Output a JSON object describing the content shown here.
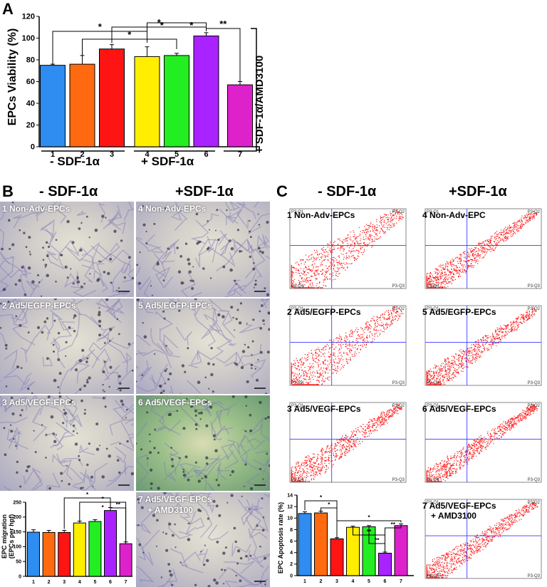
{
  "panels": {
    "a": "A",
    "b": "B",
    "c": "C"
  },
  "chart_data": [
    {
      "id": "viability",
      "type": "bar",
      "categories": [
        "1",
        "2",
        "3",
        "4",
        "5",
        "6",
        "7"
      ],
      "values": [
        75,
        76,
        90,
        83,
        84,
        102,
        57
      ],
      "errors": [
        1,
        8,
        4,
        9,
        2,
        3,
        3
      ],
      "colors": [
        "#2f8cf0",
        "#ff6a10",
        "#ff1414",
        "#ffee00",
        "#22ee22",
        "#aa22ff",
        "#dd22cc"
      ],
      "ylabel": "EPCs Viability (%)",
      "ylim": [
        0,
        120
      ],
      "yticks": [
        "0",
        "20",
        "40",
        "60",
        "80",
        "100",
        "120"
      ],
      "significance": [
        "*",
        "*",
        "*",
        "*",
        "*",
        "**"
      ],
      "group_labels": [
        "- SDF-1α",
        "+ SDF-1α"
      ],
      "side_label": "+ SDF-1α/AMD3100"
    },
    {
      "id": "migration",
      "type": "bar",
      "categories": [
        "1",
        "2",
        "3",
        "4",
        "5",
        "6",
        "7"
      ],
      "values": [
        149,
        148,
        148,
        180,
        185,
        222,
        110
      ],
      "errors": [
        8,
        7,
        7,
        6,
        6,
        10,
        6
      ],
      "colors": [
        "#2f8cf0",
        "#ff6a10",
        "#ff1414",
        "#ffee00",
        "#22ee22",
        "#aa22ff",
        "#dd22cc"
      ],
      "ylabel": "EPC migration",
      "ylabel2": "(EPCs per hpf)",
      "ylim": [
        0,
        250
      ],
      "yticks": [
        "0",
        "50",
        "100",
        "150",
        "200",
        "250"
      ],
      "significance": [
        "*",
        "*",
        "*",
        "**"
      ]
    },
    {
      "id": "apoptosis",
      "type": "bar",
      "categories": [
        "1",
        "2",
        "3",
        "4",
        "5",
        "6",
        "7"
      ],
      "values": [
        10.8,
        10.9,
        6.4,
        8.4,
        8.5,
        3.9,
        8.7
      ],
      "errors": [
        0.3,
        0.3,
        0.2,
        0.2,
        0.2,
        0.2,
        0.3
      ],
      "colors": [
        "#2f8cf0",
        "#ff6a10",
        "#ff1414",
        "#ffee00",
        "#22ee22",
        "#aa22ff",
        "#dd22cc"
      ],
      "ylabel": "EPC Apoptosis rate (%)",
      "ylim": [
        0,
        14
      ],
      "yticks": [
        "0",
        "2",
        "4",
        "6",
        "8",
        "10",
        "12",
        "14"
      ],
      "significance": [
        "*",
        "*",
        "*",
        "**",
        "**",
        "**"
      ]
    }
  ],
  "panel_b": {
    "header_minus": "- SDF-1α",
    "header_plus": "+SDF-1α",
    "images": [
      "1  Non-Adv-EPCs",
      "4  Non-Adv-EPCs",
      "2  Ad5/EGFP-EPCs",
      "5  Ad5/EGFP-EPCs",
      "3  Ad5/VEGF-EPCs",
      "6  Ad5/VEGF-EPCs",
      "7  Ad5/VEGF-EPCs",
      "+ AMD3100"
    ]
  },
  "panel_c": {
    "header_minus": "- SDF-1α",
    "header_plus": "+SDF-1α",
    "plots": [
      "1  Non-Adv-EPCs",
      "4  Non-Adv-EPC",
      "2  Ad5/EGFP-EPCs",
      "5  Ad5/EGFP-EPCs",
      "3  Ad5/VEGF-EPCs",
      "6  Ad5/VEGF-EPCs",
      "7  Ad5/VEGF-EPCs",
      "+ AMD3100"
    ],
    "quadrants": [
      "P3-Q1",
      "P3-Q2",
      "P3-Q3",
      "P3-Q4"
    ]
  }
}
